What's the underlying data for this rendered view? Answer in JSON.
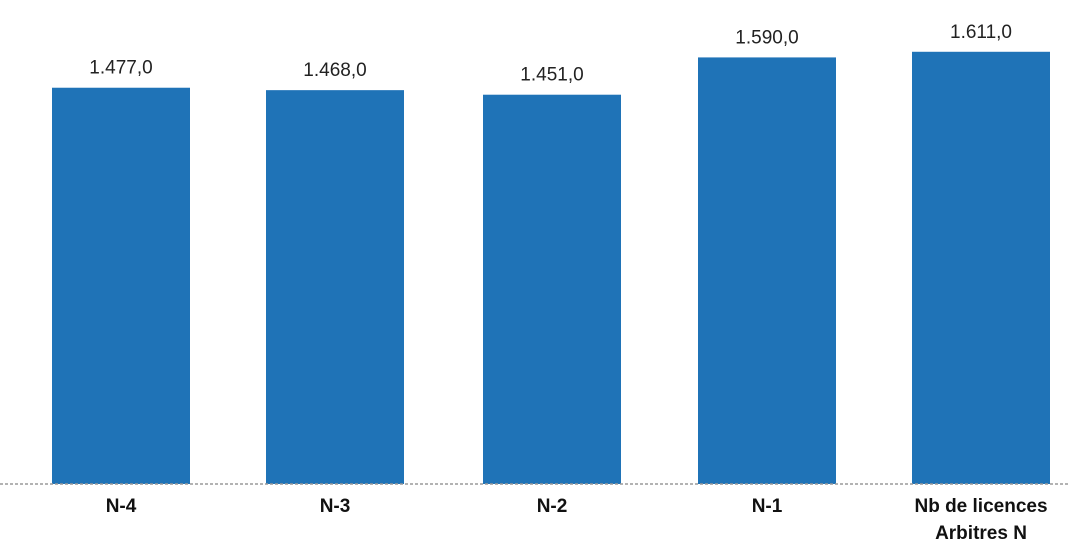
{
  "chart_data": {
    "type": "bar",
    "categories": [
      [
        "N-4"
      ],
      [
        "N-3"
      ],
      [
        "N-2"
      ],
      [
        "N-1"
      ],
      [
        "Nb de licences",
        "Arbitres N"
      ]
    ],
    "values": [
      1477.0,
      1468.0,
      1451.0,
      1590.0,
      1611.0
    ],
    "value_labels": [
      "1.477,0",
      "1.468,0",
      "1.451,0",
      "1.590,0",
      "1.611,0"
    ],
    "title": "",
    "xlabel": "",
    "ylabel": "",
    "ylim": [
      0,
      1640
    ],
    "grid": false,
    "legend": "none",
    "colors": {
      "bar": "#1f73b7",
      "axis": "#9a9a9a",
      "text": "#222222"
    }
  }
}
